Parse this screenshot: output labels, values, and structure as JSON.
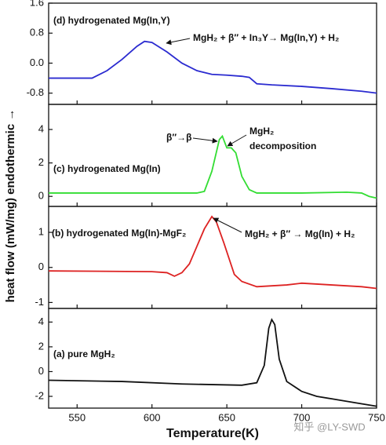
{
  "ylabel": "heat flow (mW/mg)  endothermic →",
  "xlabel": "Temperature(K)",
  "watermark": "知乎 @LY-SWD",
  "chart_data": [
    {
      "type": "line",
      "label": "(d) hydrogenated Mg(In,Y)",
      "color": "#2b2bd0",
      "x": [
        531,
        560,
        570,
        580,
        590,
        595,
        600,
        610,
        620,
        630,
        640,
        650,
        660,
        665,
        670,
        680,
        700,
        720,
        740,
        750
      ],
      "values": [
        -0.4,
        -0.4,
        -0.2,
        0.1,
        0.45,
        0.58,
        0.55,
        0.3,
        0.0,
        -0.2,
        -0.3,
        -0.32,
        -0.35,
        -0.38,
        -0.55,
        -0.58,
        -0.62,
        -0.68,
        -0.75,
        -0.8
      ],
      "xlim": [
        531,
        750
      ],
      "xticks": [
        550,
        600,
        650,
        700,
        750
      ],
      "ylim": [
        -1.1,
        1.6
      ],
      "yticks": [
        1.6,
        0.8,
        {
          "value": 0,
          "label": "0.0"
        },
        -0.8
      ],
      "annotations": [
        "MgH₂ + β″ + In₃Y→ Mg(In,Y) + H₂"
      ]
    },
    {
      "type": "line",
      "label": "(c) hydrogenated Mg(In)",
      "color": "#33dd33",
      "x": [
        531,
        600,
        630,
        635,
        640,
        645,
        647,
        650,
        653,
        656,
        660,
        665,
        670,
        700,
        730,
        740,
        745,
        750
      ],
      "values": [
        0.2,
        0.2,
        0.2,
        0.3,
        1.5,
        3.4,
        3.6,
        2.9,
        2.9,
        2.6,
        1.2,
        0.4,
        0.2,
        0.2,
        0.25,
        0.2,
        0.0,
        -0.1
      ],
      "xlim": [
        531,
        750
      ],
      "xticks": [
        550,
        600,
        650,
        700,
        750
      ],
      "ylim": [
        -0.6,
        5.5
      ],
      "yticks": [
        4,
        2,
        0
      ],
      "annotations": [
        "β″→β",
        "MgH₂",
        "decomposition"
      ]
    },
    {
      "type": "line",
      "label": "(b) hydrogenated Mg(In)-MgF₂",
      "color": "#dd2222",
      "x": [
        531,
        600,
        610,
        615,
        620,
        625,
        630,
        635,
        640,
        643,
        648,
        655,
        660,
        670,
        690,
        700,
        720,
        740,
        750
      ],
      "values": [
        -0.1,
        -0.12,
        -0.15,
        -0.25,
        -0.15,
        0.1,
        0.6,
        1.1,
        1.45,
        1.3,
        0.7,
        -0.2,
        -0.4,
        -0.55,
        -0.5,
        -0.45,
        -0.5,
        -0.55,
        -0.6
      ],
      "xlim": [
        531,
        750
      ],
      "xticks": [
        550,
        600,
        650,
        700,
        750
      ],
      "ylim": [
        -1.17,
        1.74
      ],
      "yticks": [
        1,
        0,
        -1
      ],
      "annotations": [
        "MgH₂ + β″ → Mg(In) + H₂"
      ]
    },
    {
      "type": "line",
      "label": "(a) pure MgH₂",
      "color": "#111111",
      "x": [
        531,
        580,
        620,
        660,
        670,
        675,
        678,
        680,
        682,
        685,
        690,
        700,
        710,
        720,
        740,
        750
      ],
      "values": [
        -0.7,
        -0.8,
        -1.0,
        -1.1,
        -0.9,
        0.5,
        3.5,
        4.2,
        3.8,
        1.0,
        -0.8,
        -1.6,
        -2.0,
        -2.2,
        -2.6,
        -2.8
      ],
      "xlim": [
        531,
        750
      ],
      "xticks": [
        550,
        600,
        650,
        700,
        750
      ],
      "ylim": [
        -2.95,
        5.1
      ],
      "yticks": [
        4,
        2,
        0,
        -2
      ],
      "annotations": []
    }
  ]
}
